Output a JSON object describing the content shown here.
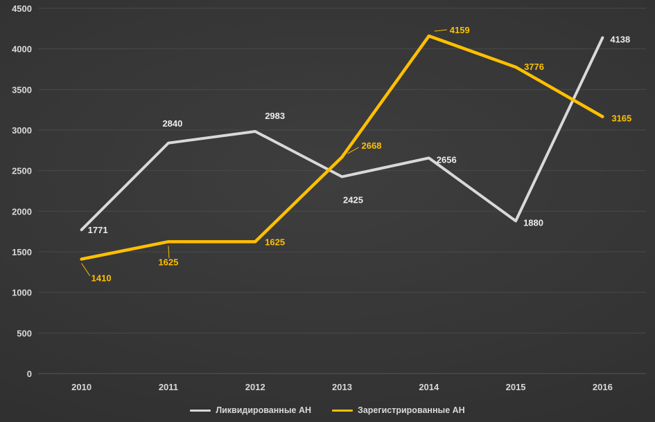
{
  "chart_data": {
    "type": "line",
    "title": "",
    "xlabel": "",
    "ylabel": "",
    "categories": [
      "2010",
      "2011",
      "2012",
      "2013",
      "2014",
      "2015",
      "2016"
    ],
    "series": [
      {
        "name": "Ликвидированные АН",
        "color": "#d9d9d9",
        "label_color": "#ececec",
        "values": [
          1771,
          2840,
          2983,
          2425,
          2656,
          1880,
          4138
        ]
      },
      {
        "name": "Зарегистрированные АН",
        "color": "#ffc000",
        "label_color": "#ffc000",
        "values": [
          1410,
          1625,
          1625,
          2668,
          4159,
          3776,
          3165
        ]
      }
    ],
    "ylim": [
      0,
      4500
    ],
    "ytick_step": 500,
    "yticks": [
      "0",
      "500",
      "1000",
      "1500",
      "2000",
      "2500",
      "3000",
      "3500",
      "4000",
      "4500"
    ],
    "grid": true,
    "legend_position": "bottom"
  },
  "colors": {
    "background_center": "#3e3e3e",
    "background_edge": "#2a2a2a",
    "gridline": "#4a4a4a",
    "axis_line": "#555555",
    "axis_text": "#d9d9d9"
  }
}
